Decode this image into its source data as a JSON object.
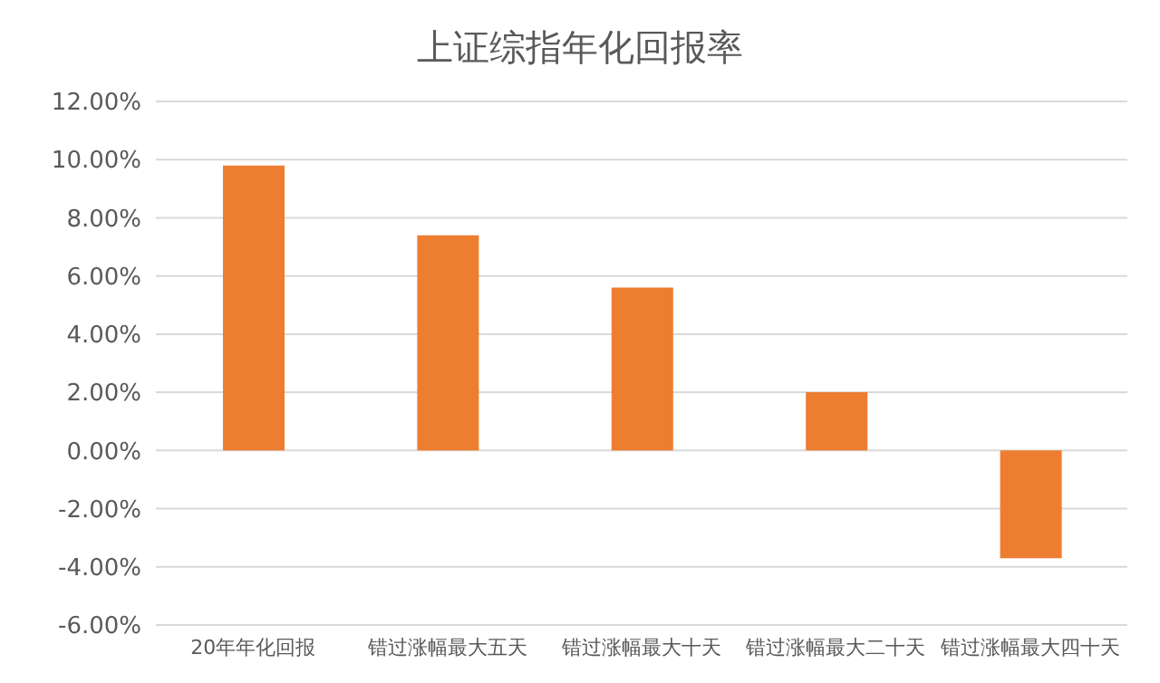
{
  "chart_data": {
    "type": "bar",
    "title": "上证综指年化回报率",
    "categories": [
      "20年年化回报",
      "错过涨幅最大五天",
      "错过涨幅最大十天",
      "错过涨幅最大二十天",
      "错过涨幅最大四十天"
    ],
    "values": [
      9.8,
      7.4,
      5.6,
      2.0,
      -3.7
    ],
    "color": "#ed7d31",
    "ylim": [
      -6,
      12
    ],
    "yticks": [
      {
        "value": -6,
        "label": "-6.00%"
      },
      {
        "value": -4,
        "label": "-4.00%"
      },
      {
        "value": -2,
        "label": "-2.00%"
      },
      {
        "value": 0,
        "label": "0.00%"
      },
      {
        "value": 2,
        "label": "2.00%"
      },
      {
        "value": 4,
        "label": "4.00%"
      },
      {
        "value": 6,
        "label": "6.00%"
      },
      {
        "value": 8,
        "label": "8.00%"
      },
      {
        "value": 10,
        "label": "10.00%"
      },
      {
        "value": 12,
        "label": "12.00%"
      }
    ],
    "grid": "y"
  }
}
